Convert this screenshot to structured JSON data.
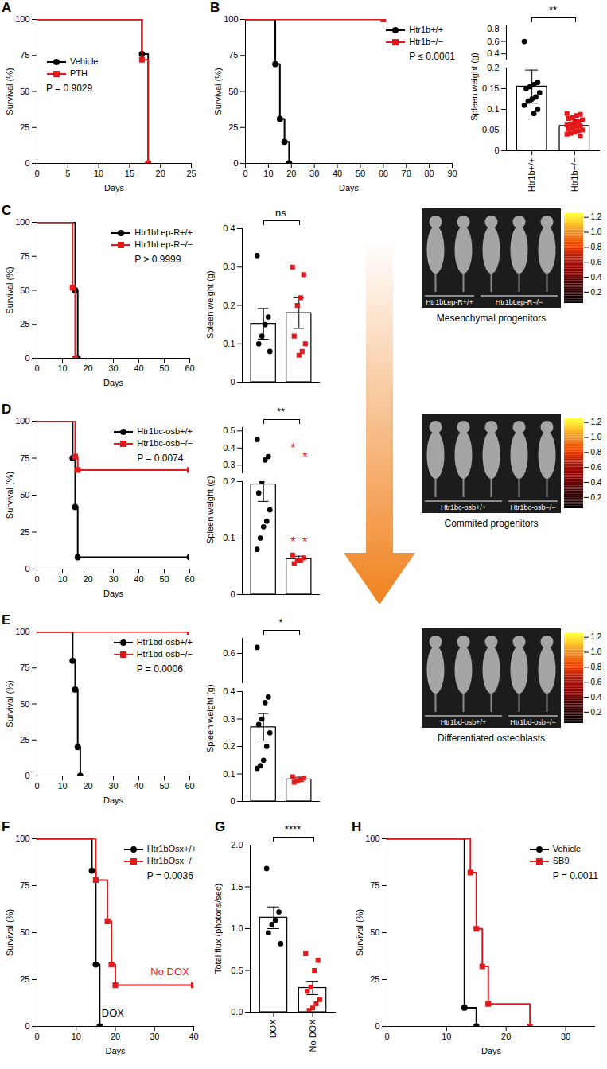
{
  "chart_data": [
    {
      "panel": "A",
      "type": "step",
      "xlabel": "Days",
      "ylabel": "Survival (%)",
      "xlim": [
        0,
        25
      ],
      "xticks": [
        0,
        5,
        10,
        15,
        20,
        25
      ],
      "ylim": [
        0,
        100
      ],
      "yticks": [
        0,
        25,
        50,
        75,
        100
      ],
      "legend": "left",
      "p_value": "P = 0.9029",
      "series": [
        {
          "name": "Vehicle",
          "color": "#000000",
          "marker": "circle",
          "x": [
            0,
            17,
            18
          ],
          "values": [
            100,
            76,
            0
          ]
        },
        {
          "name": "PTH",
          "color": "#e31a1c",
          "marker": "square",
          "x": [
            0,
            17,
            18
          ],
          "values": [
            100,
            72,
            0
          ]
        }
      ]
    },
    {
      "panel": "B",
      "type": "step",
      "xlabel": "Days",
      "ylabel": "Survival (%)",
      "xlim": [
        0,
        90
      ],
      "xticks": [
        0,
        10,
        20,
        30,
        40,
        50,
        60,
        70,
        80,
        90
      ],
      "ylim": [
        0,
        100
      ],
      "yticks": [
        0,
        25,
        50,
        75,
        100
      ],
      "legend": "right",
      "p_value": "P ≤ 0.0001",
      "series": [
        {
          "name": "Htr1b+/+",
          "color": "#000000",
          "marker": "circle",
          "x": [
            0,
            13,
            15,
            17,
            19
          ],
          "values": [
            100,
            69,
            31,
            15,
            0
          ]
        },
        {
          "name": "Htr1b−/−",
          "color": "#e31a1c",
          "marker": "square",
          "x": [
            0,
            60
          ],
          "values": [
            100,
            100
          ]
        }
      ]
    },
    {
      "type": "bar",
      "ylabel": "Spleen weight (g)",
      "ylim": [
        0,
        0.2
      ],
      "yticks": [
        0,
        0.05,
        0.1,
        0.15,
        0.2
      ],
      "ylim_upper": [
        0.3,
        0.85
      ],
      "yticks_upper": [
        0.4,
        0.6,
        0.8
      ],
      "significance": "**",
      "series": [
        {
          "name": "Htr1b+/+",
          "color": "#000000",
          "marker": "circle",
          "value": 0.155,
          "error": 0.04,
          "points": [
            0.6,
            0.165,
            0.16,
            0.155,
            0.15,
            0.14,
            0.13,
            0.125,
            0.12,
            0.11,
            0.1,
            0.09
          ]
        },
        {
          "name": "Htr1b−/−",
          "color": "#e31a1c",
          "marker": "square",
          "value": 0.06,
          "error": 0.015,
          "points": [
            0.09,
            0.088,
            0.085,
            0.08,
            0.078,
            0.075,
            0.07,
            0.068,
            0.065,
            0.062,
            0.06,
            0.058,
            0.055,
            0.052,
            0.05,
            0.048,
            0.045,
            0.042,
            0.04,
            0.035
          ]
        }
      ]
    },
    {
      "panel": "C",
      "type": "step",
      "xlabel": "Days",
      "ylabel": "Survival (%)",
      "xlim": [
        0,
        60
      ],
      "xticks": [
        0,
        10,
        20,
        30,
        40,
        50,
        60
      ],
      "ylim": [
        0,
        100
      ],
      "yticks": [
        0,
        25,
        50,
        75,
        100
      ],
      "legend": "right",
      "p_value": "P > 0.9999",
      "series": [
        {
          "name": "Htr1bLep-R+/+",
          "color": "#000000",
          "marker": "circle",
          "x": [
            0,
            15,
            16
          ],
          "values": [
            100,
            50,
            0
          ]
        },
        {
          "name": "Htr1bLep-R−/−",
          "color": "#e31a1c",
          "marker": "square",
          "x": [
            0,
            14,
            15
          ],
          "values": [
            100,
            52,
            0
          ]
        }
      ]
    },
    {
      "type": "bar",
      "ylabel": "Spleen weight (g)",
      "ylim": [
        0,
        0.4
      ],
      "yticks": [
        0,
        0.1,
        0.2,
        0.3,
        0.4
      ],
      "significance": "ns",
      "tick_labels": "y",
      "series": [
        {
          "color": "#000000",
          "marker": "circle",
          "value": 0.152,
          "error": 0.04,
          "points": [
            0.33,
            0.17,
            0.15,
            0.12,
            0.1,
            0.08
          ]
        },
        {
          "color": "#e31a1c",
          "marker": "square",
          "value": 0.18,
          "error": 0.04,
          "points": [
            0.3,
            0.28,
            0.22,
            0.2,
            0.12,
            0.1,
            0.08,
            0.07
          ]
        }
      ]
    },
    {
      "type": "image",
      "mice": [
        2,
        3
      ],
      "labels": [
        "Htr1bLep-R+/+",
        "Htr1bLep-R−/−"
      ],
      "caption": "Mesenchymal progenitors",
      "colorbar_range": [
        0.05,
        1.25
      ],
      "colorbar_ticks": [
        0.2,
        0.4,
        0.6,
        0.8,
        {
          "value": 1,
          "label": "1.0"
        },
        1.2
      ]
    },
    {
      "panel": "D",
      "type": "step",
      "xlabel": "Days",
      "ylabel": "Survival (%)",
      "xlim": [
        0,
        60
      ],
      "xticks": [
        0,
        10,
        20,
        30,
        40,
        50,
        60
      ],
      "ylim": [
        0,
        100
      ],
      "yticks": [
        0,
        25,
        50,
        75,
        100
      ],
      "legend": "right",
      "p_value": "P = 0.0074",
      "series": [
        {
          "name": "Htr1bc-osb+/+",
          "color": "#000000",
          "marker": "circle",
          "x": [
            0,
            14,
            15,
            16,
            60
          ],
          "values": [
            100,
            75,
            42,
            8,
            8
          ]
        },
        {
          "name": "Htr1bc-osb−/−",
          "color": "#e31a1c",
          "marker": "square",
          "x": [
            0,
            15,
            16,
            60
          ],
          "values": [
            100,
            76,
            67,
            67
          ]
        }
      ]
    },
    {
      "type": "bar",
      "ylabel": "Spleen weight (g)",
      "ylim": [
        0,
        0.2
      ],
      "yticks": [
        0,
        0.1,
        0.2
      ],
      "ylim_upper": [
        0.25,
        0.52
      ],
      "yticks_upper": [
        0.3,
        0.4,
        0.5
      ],
      "significance": "**",
      "tick_labels": "y",
      "series": [
        {
          "color": "#000000",
          "marker": "circle",
          "value": 0.195,
          "error": 0.03,
          "points": [
            0.45,
            0.35,
            0.33,
            0.2,
            0.18,
            0.15,
            0.13,
            0.12,
            0.1,
            0.08
          ]
        },
        {
          "color": "#e31a1c",
          "marker": "square",
          "value": 0.063,
          "error": 0.005,
          "points": [
            0.07,
            0.065,
            0.06,
            0.06,
            0.055
          ]
        }
      ],
      "annotations": [
        {
          "text": "*",
          "category": 1,
          "y": 0.42,
          "color": "#e31a1c"
        },
        {
          "text": "*",
          "category": 1,
          "y": 0.37,
          "color": "#e31a1c"
        },
        {
          "text": "*",
          "category": 1,
          "y": 0.1,
          "color": "#e31a1c"
        },
        {
          "text": "*",
          "category": 1,
          "y": 0.1,
          "color": "#e31a1c"
        }
      ]
    },
    {
      "type": "image",
      "mice": [
        3,
        2
      ],
      "labels": [
        "Htr1bc-osb+/+",
        "Htr1bc-osb−/−"
      ],
      "caption": "Commited progenitors",
      "colorbar_range": [
        0.05,
        1.25
      ],
      "colorbar_ticks": [
        0.2,
        0.4,
        0.6,
        0.8,
        {
          "value": 1,
          "label": "1.0"
        },
        1.2
      ]
    },
    {
      "panel": "E",
      "type": "step",
      "xlabel": "Days",
      "ylabel": "Survival (%)",
      "xlim": [
        0,
        60
      ],
      "xticks": [
        0,
        10,
        20,
        30,
        40,
        50,
        60
      ],
      "ylim": [
        0,
        100
      ],
      "yticks": [
        0,
        25,
        50,
        75,
        100
      ],
      "legend": "right",
      "p_value": "P = 0.0006",
      "series": [
        {
          "name": "Htr1bd-osb+/+",
          "color": "#000000",
          "marker": "circle",
          "x": [
            0,
            14,
            15,
            16,
            17
          ],
          "values": [
            100,
            80,
            60,
            20,
            0
          ]
        },
        {
          "name": "Htr1bd-osb−/−",
          "color": "#e31a1c",
          "marker": "square",
          "x": [
            0,
            60
          ],
          "values": [
            100,
            100
          ]
        }
      ]
    },
    {
      "type": "bar",
      "ylabel": "Spleen weight (g)",
      "ylim": [
        0,
        0.4
      ],
      "yticks": [
        0,
        0.1,
        0.2,
        0.3,
        0.4
      ],
      "ylim_upper": [
        0.5,
        0.65
      ],
      "yticks_upper": [
        0.6
      ],
      "significance": "*",
      "tick_labels": "y",
      "series": [
        {
          "color": "#000000",
          "marker": "circle",
          "value": 0.27,
          "error": 0.05,
          "points": [
            0.62,
            0.38,
            0.36,
            0.3,
            0.28,
            0.25,
            0.2,
            0.15,
            0.13,
            0.12
          ]
        },
        {
          "color": "#e31a1c",
          "marker": "square",
          "value": 0.08,
          "error": 0.008,
          "points": [
            0.09,
            0.085,
            0.08,
            0.075,
            0.07
          ]
        }
      ]
    },
    {
      "type": "image",
      "mice": [
        3,
        2
      ],
      "labels": [
        "Htr1bd-osb+/+",
        "Htr1bd-osb−/−"
      ],
      "caption": "Differentiated osteoblasts",
      "colorbar_range": [
        0.05,
        1.25
      ],
      "colorbar_ticks": [
        0.2,
        0.4,
        0.6,
        0.8,
        {
          "value": 1,
          "label": "1.0"
        },
        1.2
      ]
    },
    {
      "panel": "F",
      "type": "step",
      "xlabel": "Days",
      "ylabel": "Survival (%)",
      "xlim": [
        0,
        40
      ],
      "xticks": [
        0,
        10,
        20,
        30,
        40
      ],
      "ylim": [
        0,
        100
      ],
      "yticks": [
        0,
        25,
        50,
        75,
        100
      ],
      "legend": "right",
      "p_value": "P = 0.0036",
      "series": [
        {
          "name": "Htr1bOsx+/+",
          "color": "#000000",
          "marker": "circle",
          "x": [
            0,
            14,
            15,
            16
          ],
          "values": [
            100,
            83,
            33,
            0
          ]
        },
        {
          "name": "Htr1bOsx−/−",
          "color": "#e31a1c",
          "marker": "square",
          "x": [
            0,
            15,
            18,
            19,
            20,
            40
          ],
          "values": [
            100,
            78,
            56,
            33,
            22,
            22
          ]
        }
      ],
      "annotations": [
        {
          "text": "No DOX",
          "x": 29,
          "y": 29,
          "color": "#e31a1c"
        },
        {
          "text": "DOX",
          "x": 16.5,
          "y": 7,
          "color": "#000000"
        }
      ]
    },
    {
      "panel": "G",
      "type": "bar",
      "ylabel": "Total flux (photons/sec)",
      "ylim": [
        0,
        2
      ],
      "yticks": [
        {
          "value": 0,
          "label": "0.0"
        },
        {
          "value": 0.5,
          "label": "0.5"
        },
        {
          "value": 1,
          "label": "1.0"
        },
        {
          "value": 1.5,
          "label": "1.5"
        },
        {
          "value": 2,
          "label": "2.0"
        }
      ],
      "significance": "****",
      "series": [
        {
          "name": "DOX",
          "color": "#000000",
          "marker": "circle",
          "value": 1.13,
          "error": 0.13,
          "points": [
            1.72,
            1.2,
            1.1,
            1.05,
            0.95,
            0.82
          ]
        },
        {
          "name": "No DOX",
          "color": "#e31a1c",
          "marker": "square",
          "value": 0.29,
          "error": 0.08,
          "points": [
            0.7,
            0.62,
            0.5,
            0.3,
            0.25,
            0.15,
            0.1,
            0.05,
            0.02
          ]
        }
      ]
    },
    {
      "panel": "H",
      "type": "step",
      "xlabel": "Days",
      "ylabel": "Survival (%)",
      "xlim": [
        0,
        35
      ],
      "xticks": [
        0,
        10,
        20,
        30
      ],
      "ylim": [
        0,
        100
      ],
      "yticks": [
        0,
        25,
        50,
        75,
        100
      ],
      "legend": "right",
      "p_value": "P = 0.0011",
      "series": [
        {
          "name": "Vehicle",
          "color": "#000000",
          "marker": "circle",
          "x": [
            0,
            13,
            15
          ],
          "values": [
            100,
            10,
            0
          ]
        },
        {
          "name": "SB9",
          "color": "#e31a1c",
          "marker": "square",
          "x": [
            0,
            14,
            15,
            16,
            17,
            24
          ],
          "values": [
            100,
            82,
            52,
            32,
            12,
            0
          ]
        }
      ]
    }
  ]
}
